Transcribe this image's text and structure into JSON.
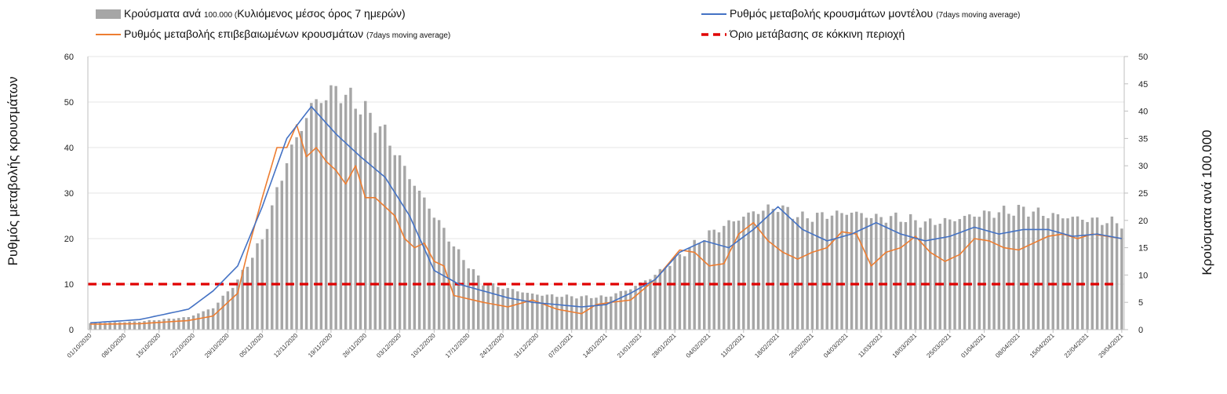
{
  "chart_data": {
    "type": "bar+line",
    "legend": {
      "bars_main": "Κρούσματα ανά",
      "bars_small": "100.000 (",
      "bars_main2": "Κυλιόμενος μέσος όρος 7 ημερών)",
      "model_main": "Ρυθμός μεταβολής κρουσμάτων μοντέλου",
      "model_small": "(7days moving average)",
      "confirmed_main": "Ρυθμός μεταβολής επιβεβαιωμένων κρουσμάτων",
      "confirmed_small": "(7days moving average)",
      "threshold": "Όριο μετάβασης σε κόκκινη περιοχή"
    },
    "ylabel_left": "Ρυθμός μεταβολής κρουσμάτων",
    "ylabel_right": "Κρούσματα ανά 100.000",
    "left_axis": {
      "min": 0,
      "max": 60,
      "ticks": [
        0,
        10,
        20,
        30,
        40,
        50,
        60
      ]
    },
    "right_axis": {
      "min": 0,
      "max": 50,
      "ticks": [
        0,
        5,
        10,
        15,
        20,
        25,
        30,
        35,
        40,
        45,
        50
      ]
    },
    "x_start": "2020-10-01",
    "x_days": 211,
    "x_tick_labels": [
      "01/10/2020",
      "08/10/2020",
      "15/10/2020",
      "22/10/2020",
      "29/10/2020",
      "05/11/2020",
      "12/11/2020",
      "19/11/2020",
      "26/11/2020",
      "03/12/2020",
      "10/12/2020",
      "17/12/2020",
      "24/12/2020",
      "31/12/2020",
      "07/01/2021",
      "14/01/2021",
      "21/01/2021",
      "28/01/2021",
      "04/02/2021",
      "11/02/2021",
      "18/02/2021",
      "25/02/2021",
      "04/03/2021",
      "11/03/2021",
      "18/03/2021",
      "25/03/2021",
      "01/04/2021",
      "08/04/2021",
      "15/04/2021",
      "22/04/2021",
      "29/04/2021"
    ],
    "threshold_value": 10,
    "colors": {
      "bars": "#a6a6a6",
      "model": "#4472c4",
      "confirmed": "#ed7d31",
      "threshold": "#e00000"
    },
    "bars_key_days": [
      0,
      10,
      20,
      25,
      30,
      35,
      40,
      45,
      50,
      55,
      60,
      65,
      70,
      75,
      80,
      90,
      95,
      100,
      105,
      110,
      115,
      120,
      125,
      130,
      135,
      140,
      145,
      150,
      155,
      160,
      165,
      170,
      175,
      180,
      185,
      190,
      195,
      200,
      205,
      210
    ],
    "bars_key_values": [
      1.2,
      1.5,
      2.3,
      4.0,
      9.0,
      16.5,
      31.0,
      41.0,
      44.0,
      41.0,
      36.0,
      28.0,
      21.0,
      14.0,
      8.5,
      6.5,
      6.2,
      6.0,
      6.0,
      7.5,
      10.0,
      13.5,
      17.0,
      19.5,
      21.5,
      22.5,
      20.5,
      21.0,
      21.5,
      20.5,
      20.5,
      19.5,
      20.0,
      21.0,
      21.5,
      22.0,
      21.0,
      20.5,
      20.0,
      19.5
    ],
    "model_key_days": [
      0,
      10,
      20,
      25,
      30,
      35,
      40,
      45,
      50,
      55,
      60,
      65,
      70,
      75,
      80,
      85,
      90,
      95,
      100,
      105,
      110,
      115,
      120,
      125,
      130,
      135,
      140,
      145,
      150,
      155,
      160,
      165,
      170,
      175,
      180,
      185,
      190,
      195,
      200,
      205,
      210
    ],
    "model_key_values": [
      1.5,
      2.2,
      4.5,
      8.5,
      14.0,
      27.0,
      42.0,
      49.0,
      43.0,
      38.0,
      33.5,
      25.0,
      13.0,
      10.0,
      8.5,
      7.0,
      6.0,
      5.5,
      5.0,
      5.5,
      8.0,
      11.0,
      17.0,
      19.5,
      18.0,
      22.0,
      27.0,
      22.0,
      19.5,
      21.0,
      23.5,
      21.0,
      19.5,
      20.5,
      22.5,
      21.0,
      22.0,
      22.0,
      20.5,
      21.0,
      20.0
    ],
    "confirmed_key_days": [
      0,
      10,
      20,
      25,
      28,
      30,
      32,
      35,
      38,
      40,
      42,
      44,
      46,
      48,
      50,
      52,
      54,
      56,
      58,
      60,
      62,
      64,
      66,
      68,
      70,
      72,
      74,
      76,
      78,
      80,
      85,
      90,
      95,
      100,
      103,
      106,
      110,
      115,
      120,
      123,
      126,
      129,
      132,
      135,
      138,
      141,
      144,
      147,
      150,
      153,
      156,
      159,
      162,
      165,
      168,
      171,
      174,
      177,
      180,
      183,
      186,
      189,
      192,
      195,
      198,
      201,
      204,
      207,
      210
    ],
    "confirmed_key_values": [
      1.2,
      1.3,
      2.0,
      3.0,
      6.0,
      8.0,
      17.0,
      29.0,
      40.0,
      40.0,
      45.0,
      38.0,
      40.0,
      37.0,
      35.0,
      32.0,
      36.0,
      29.0,
      29.0,
      27.0,
      25.0,
      20.0,
      18.0,
      19.0,
      15.0,
      14.0,
      7.5,
      7.0,
      6.5,
      6.0,
      5.0,
      6.5,
      4.5,
      3.5,
      5.5,
      6.0,
      6.5,
      11.0,
      17.5,
      17.0,
      14.0,
      14.5,
      21.0,
      23.5,
      19.5,
      17.0,
      15.5,
      17.0,
      18.0,
      21.5,
      21.0,
      14.0,
      17.0,
      18.0,
      20.5,
      17.0,
      15.0,
      16.5,
      20.0,
      19.5,
      18.0,
      17.5,
      19.0,
      20.5,
      21.0,
      20.0,
      21.0,
      20.5,
      20.0
    ]
  }
}
